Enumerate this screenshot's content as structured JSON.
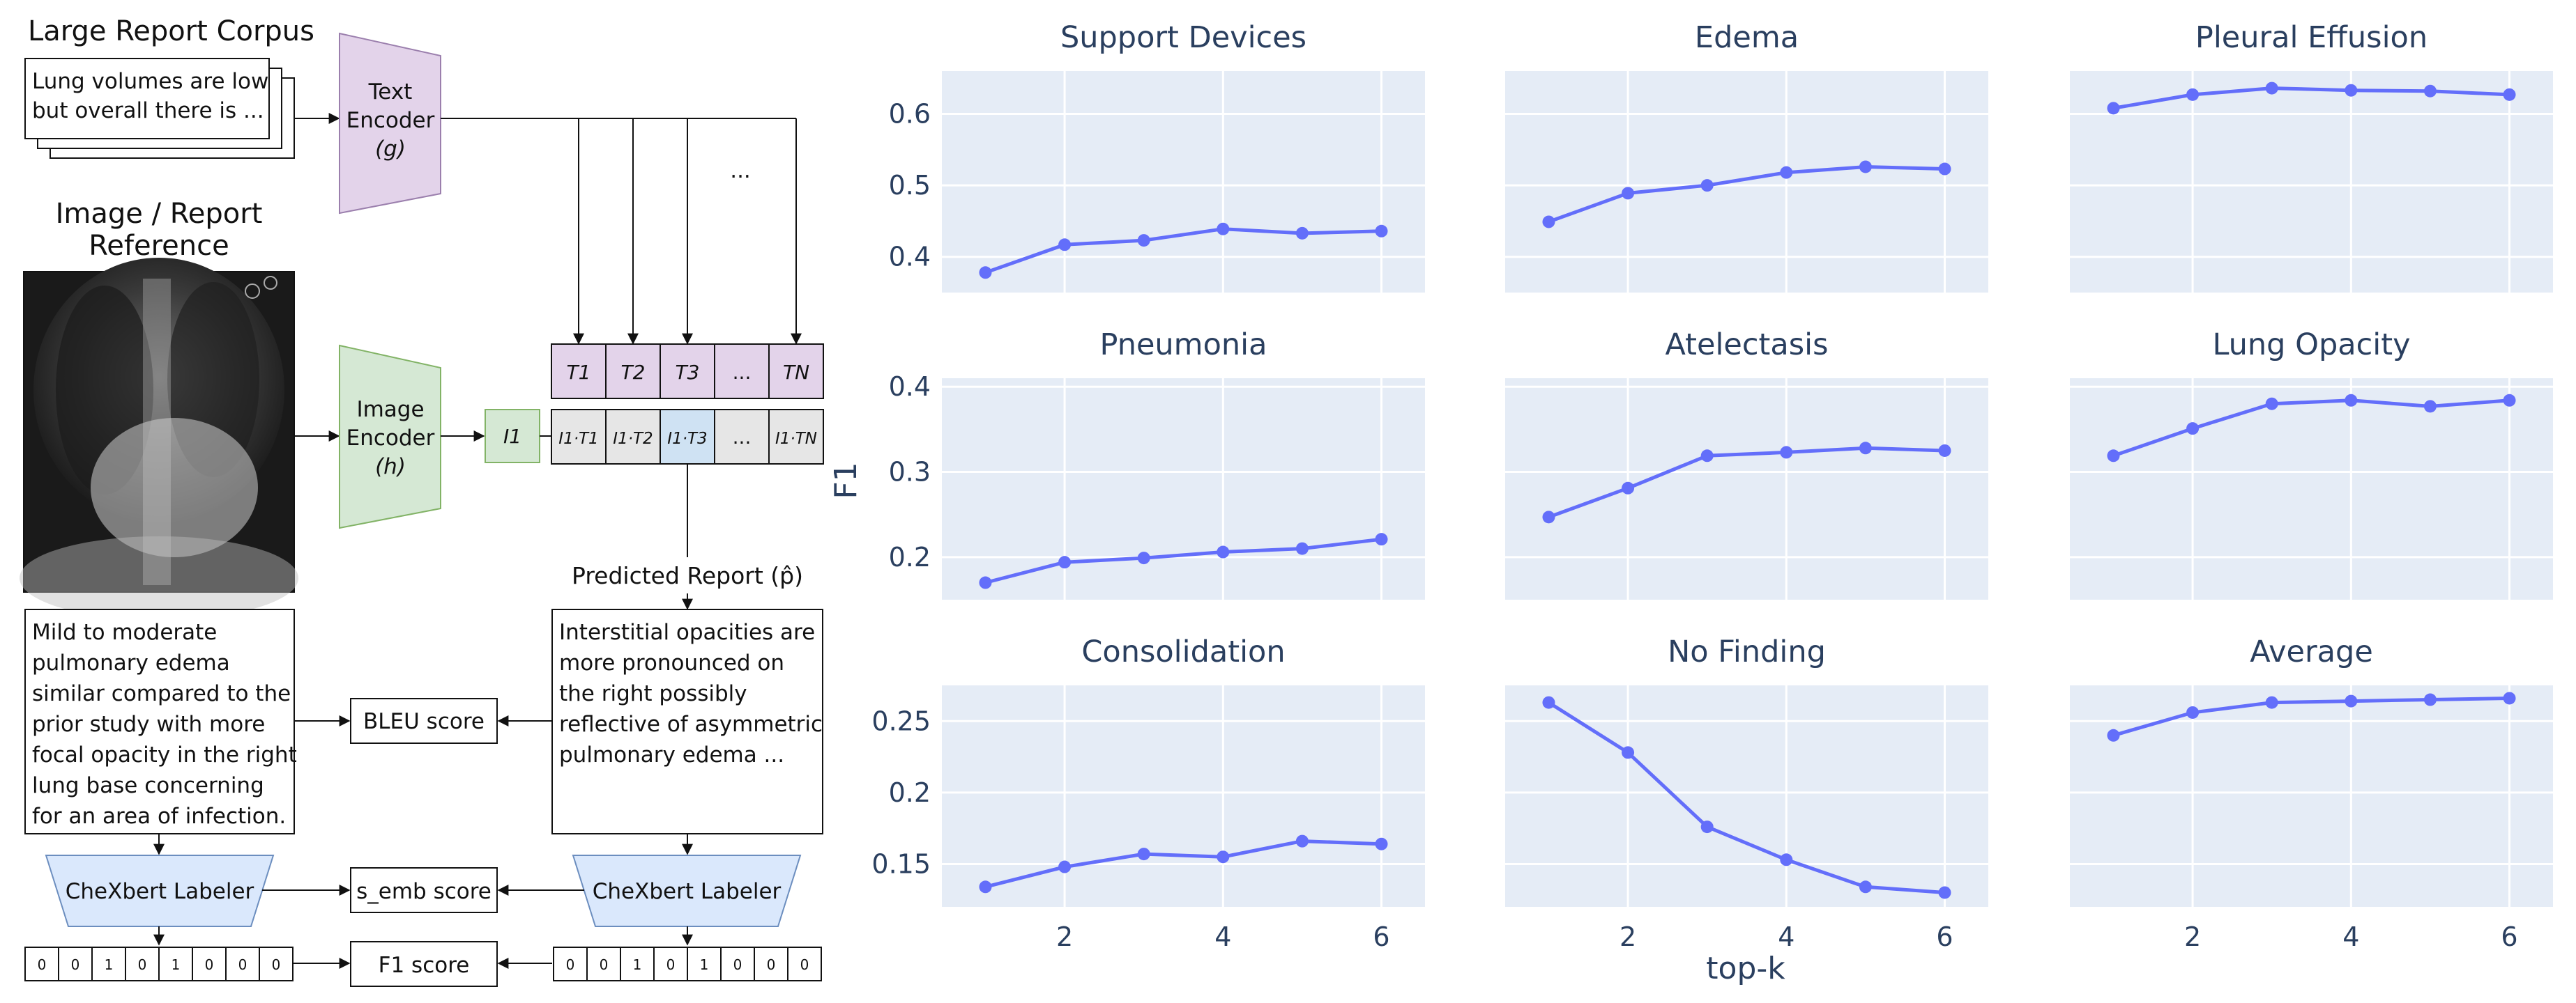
{
  "diagram": {
    "corpus_title": "Large Report Corpus",
    "corpus_text": [
      "Lung volumes are low",
      "but overall there is ..."
    ],
    "text_encoder": [
      "Text",
      "Encoder",
      "(g)"
    ],
    "reference_title": [
      "Image / Report",
      "Reference"
    ],
    "image_encoder": [
      "Image",
      "Encoder",
      "(h)"
    ],
    "image_embedding": "I1",
    "text_embeddings": [
      "T1",
      "T2",
      "T3",
      "...",
      "TN"
    ],
    "scores": [
      "I1·T1",
      "I1·T2",
      "I1·T3",
      "...",
      "I1·TN"
    ],
    "ellipsis": "...",
    "predicted_title": "Predicted Report (p̂)",
    "reference_report": [
      "Mild to moderate",
      "pulmonary edema",
      "similar compared to the",
      "prior study with more",
      "focal opacity in the right",
      "lung base concerning",
      "for an area of infection."
    ],
    "predicted_report": [
      "Interstitial opacities are",
      "more pronounced on",
      "the right possibly",
      "reflective of asymmetric",
      "pulmonary edema ..."
    ],
    "bleu_score": "BLEU score",
    "labeler": "CheXbert Labeler",
    "s_emb_score": "s_emb score",
    "f1_score": "F1 score",
    "ref_labels": [
      "0",
      "0",
      "1",
      "0",
      "1",
      "0",
      "0",
      "0"
    ],
    "pred_labels": [
      "0",
      "0",
      "1",
      "0",
      "1",
      "0",
      "0",
      "0"
    ],
    "colors": {
      "text_encoder": "#e3d3ea",
      "image_encoder": "#d5e8d4",
      "labeler": "#dae8fc",
      "highlight": "#cfe2f3",
      "cell_gray": "#e6e6e6"
    }
  },
  "chart_data": {
    "type": "line",
    "shared_xlabel": "top-k",
    "shared_ylabel": "F1",
    "x": [
      1,
      2,
      3,
      4,
      5,
      6
    ],
    "xticks": [
      2,
      4,
      6
    ],
    "line_color": "#636efa",
    "background": "#e5ecf6",
    "grid": true,
    "panels": [
      {
        "title": "Support Devices",
        "values": [
          0.378,
          0.417,
          0.423,
          0.439,
          0.433,
          0.436
        ],
        "ylim": [
          0.35,
          0.66
        ],
        "yticks": [
          0.4,
          0.5,
          0.6
        ],
        "ytick_labels": [
          "0.4",
          "0.5",
          "0.6"
        ]
      },
      {
        "title": "Edema",
        "values": [
          0.449,
          0.489,
          0.5,
          0.518,
          0.526,
          0.523
        ],
        "ylim": [
          0.35,
          0.66
        ],
        "yticks": [
          0.4,
          0.5,
          0.6
        ],
        "ytick_labels": [
          "",
          "",
          ""
        ]
      },
      {
        "title": "Pleural Effusion",
        "values": [
          0.608,
          0.627,
          0.636,
          0.633,
          0.632,
          0.627
        ],
        "ylim": [
          0.35,
          0.66
        ],
        "yticks": [
          0.4,
          0.5,
          0.6
        ],
        "ytick_labels": [
          "",
          "",
          ""
        ]
      },
      {
        "title": "Pneumonia",
        "values": [
          0.17,
          0.194,
          0.199,
          0.206,
          0.21,
          0.221
        ],
        "ylim": [
          0.15,
          0.41
        ],
        "yticks": [
          0.2,
          0.3,
          0.4
        ],
        "ytick_labels": [
          "0.2",
          "0.3",
          "0.4"
        ]
      },
      {
        "title": "Atelectasis",
        "values": [
          0.247,
          0.281,
          0.319,
          0.323,
          0.328,
          0.325
        ],
        "ylim": [
          0.15,
          0.41
        ],
        "yticks": [
          0.2,
          0.3,
          0.4
        ],
        "ytick_labels": [
          "",
          "",
          ""
        ]
      },
      {
        "title": "Lung Opacity",
        "values": [
          0.319,
          0.351,
          0.38,
          0.384,
          0.377,
          0.384
        ],
        "ylim": [
          0.15,
          0.41
        ],
        "yticks": [
          0.2,
          0.3,
          0.4
        ],
        "ytick_labels": [
          "",
          "",
          ""
        ]
      },
      {
        "title": "Consolidation",
        "values": [
          0.134,
          0.148,
          0.157,
          0.155,
          0.166,
          0.164
        ],
        "ylim": [
          0.12,
          0.275
        ],
        "yticks": [
          0.15,
          0.2,
          0.25
        ],
        "ytick_labels": [
          "0.15",
          "0.2",
          "0.25"
        ]
      },
      {
        "title": "No Finding",
        "values": [
          0.263,
          0.228,
          0.176,
          0.153,
          0.134,
          0.13
        ],
        "ylim": [
          0.12,
          0.275
        ],
        "yticks": [
          0.15,
          0.2,
          0.25
        ],
        "ytick_labels": [
          "",
          "",
          ""
        ]
      },
      {
        "title": "Average",
        "values": [
          0.24,
          0.256,
          0.263,
          0.264,
          0.265,
          0.266
        ],
        "ylim": [
          0.12,
          0.275
        ],
        "yticks": [
          0.15,
          0.2,
          0.25
        ],
        "ytick_labels": [
          "",
          "",
          ""
        ]
      }
    ]
  }
}
